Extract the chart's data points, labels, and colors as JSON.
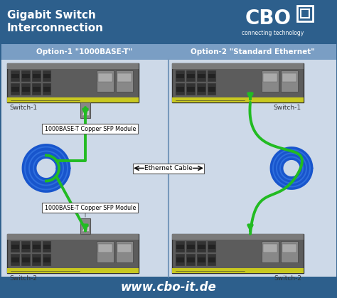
{
  "title_line1": "Gigabit Switch",
  "title_line2": "Interconnection",
  "title_color": "#ffffff",
  "header_bg": "#2d5f8c",
  "footer_bg": "#2d5f8c",
  "body_bg": "#cdd9e8",
  "option1_title": "Option-1 \"1000BASE-T\"",
  "option2_title": "Option-2 \"Standard Ethernet\"",
  "option_title_color": "#ffffff",
  "option_header_bg": "#7a9ec4",
  "divider_color": "#5588bb",
  "switch_body": "#5a5a5a",
  "switch_port_bg": "#3a3a3a",
  "switch_port_inner": "#222222",
  "switch_sfp_bg": "#888888",
  "switch_label_strip": "#c8c820",
  "switch_label1": "Switch-1",
  "switch_label2": "Switch-2",
  "switch_label_color": "#333333",
  "sfp_label": "1000BASE-T Copper SFP Module",
  "sfp_box_color": "#ffffff",
  "sfp_border_color": "#555555",
  "sfp_module_color": "#888888",
  "cable_label": "Ethernet Cable",
  "cable_box_color": "#ffffff",
  "cable_border_color": "#555555",
  "blue_cable_color": "#1855cc",
  "blue_cable_light": "#4488ee",
  "green_cable_color": "#22bb22",
  "arrow_color": "#111111",
  "footer_text": "www.cbo-it.de",
  "footer_text_color": "#ffffff",
  "cbo_text": "CBO",
  "cbo_sub": "connecting technology",
  "cbo_color": "#ffffff",
  "fig_width": 4.74,
  "fig_height": 4.19,
  "dpi": 100
}
